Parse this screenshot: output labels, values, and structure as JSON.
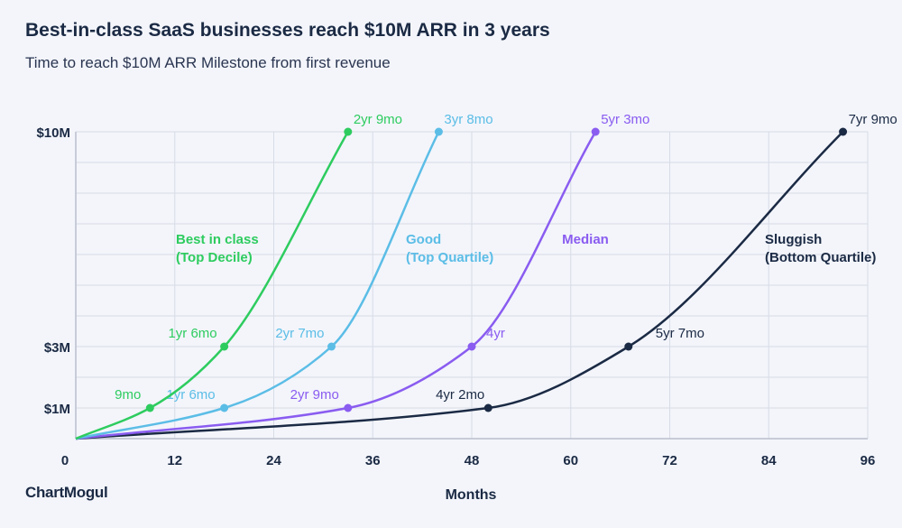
{
  "title": "Best-in-class SaaS businesses reach $10M ARR in 3 years",
  "subtitle": "Time to reach $10M ARR Milestone from first revenue",
  "logo": "ChartMogul",
  "chart_data": {
    "type": "line",
    "title": "Best-in-class SaaS businesses reach $10M ARR in 3 years",
    "subtitle": "Time to reach $10M ARR Milestone from first revenue",
    "xlabel": "Months",
    "ylabel": "",
    "xlim": [
      0,
      96
    ],
    "ylim": [
      0,
      10
    ],
    "x_ticks": [
      0,
      12,
      24,
      36,
      48,
      60,
      72,
      84,
      96
    ],
    "y_ticks": [
      {
        "value": 1,
        "label": "$1M"
      },
      {
        "value": 3,
        "label": "$3M"
      },
      {
        "value": 10,
        "label": "$10M"
      }
    ],
    "grid": true,
    "series": [
      {
        "name": "Best in class (Top Decile)",
        "name_lines": [
          "Best in class",
          "(Top Decile)"
        ],
        "color": "#2ecc5f",
        "points": [
          {
            "x": 0,
            "y": 0
          },
          {
            "x": 9,
            "y": 1,
            "label": "9mo"
          },
          {
            "x": 18,
            "y": 3,
            "label": "1yr 6mo"
          },
          {
            "x": 33,
            "y": 10,
            "label": "2yr 9mo"
          }
        ]
      },
      {
        "name": "Good (Top Quartile)",
        "name_lines": [
          "Good",
          "(Top Quartile)"
        ],
        "color": "#5bbde6",
        "points": [
          {
            "x": 0,
            "y": 0
          },
          {
            "x": 18,
            "y": 1,
            "label": "1yr 6mo"
          },
          {
            "x": 31,
            "y": 3,
            "label": "2yr 7mo"
          },
          {
            "x": 44,
            "y": 10,
            "label": "3yr 8mo"
          }
        ]
      },
      {
        "name": "Median",
        "name_lines": [
          "Median"
        ],
        "color": "#8a5cf0",
        "points": [
          {
            "x": 0,
            "y": 0
          },
          {
            "x": 33,
            "y": 1,
            "label": "2yr 9mo"
          },
          {
            "x": 48,
            "y": 3,
            "label": "4yr"
          },
          {
            "x": 63,
            "y": 10,
            "label": "5yr 3mo"
          }
        ]
      },
      {
        "name": "Sluggish (Bottom Quartile)",
        "name_lines": [
          "Sluggish",
          "(Bottom Quartile)"
        ],
        "color": "#1b2a44",
        "points": [
          {
            "x": 0,
            "y": 0
          },
          {
            "x": 50,
            "y": 1,
            "label": "4yr 2mo"
          },
          {
            "x": 67,
            "y": 3,
            "label": "5yr 7mo"
          },
          {
            "x": 93,
            "y": 10,
            "label": "7yr 9mo"
          }
        ]
      }
    ]
  }
}
